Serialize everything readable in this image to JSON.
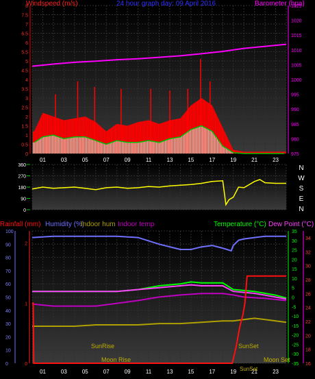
{
  "title": "24 hour graph day:  09 April 2016",
  "top_panel": {
    "left_label": "Windspeed (m/s)",
    "right_label": "Barometer (hpa)",
    "left_ticks": [
      "0",
      "0.5",
      "1",
      "1.5",
      "2",
      "2.5",
      "3",
      "3.5",
      "4",
      "4.5",
      "5",
      "5.5",
      "6",
      "6.5",
      "7",
      "7.5",
      "8"
    ],
    "right_ticks": [
      "975",
      "980",
      "985",
      "990",
      "995",
      "1000",
      "1005",
      "1010",
      "1015",
      "1020",
      "1025"
    ],
    "x_ticks": [
      "01",
      "03",
      "05",
      "07",
      "09",
      "11",
      "13",
      "15",
      "17",
      "19",
      "21",
      "23"
    ]
  },
  "direction_panel": {
    "left_ticks": [
      "0",
      "90",
      "180",
      "270",
      "360"
    ],
    "compass": [
      "N",
      "W",
      "S",
      "E",
      "N"
    ]
  },
  "bottom_panel": {
    "legend": [
      {
        "label": "Rainfall (mm)",
        "color": "#ff1010"
      },
      {
        "label": "Humidity (%)",
        "color": "#7070ff"
      },
      {
        "label": "Indoor hum",
        "color": "#b0a000"
      },
      {
        "label": "Indoor temp",
        "color": "#c000c0"
      },
      {
        "label": "Temperature (°C)",
        "color": "#00ff00"
      },
      {
        "label": "Dew Point (°C)",
        "color": "#ff40ff"
      }
    ],
    "left_ticks": [
      "0",
      "10",
      "20",
      "30",
      "40",
      "50",
      "60",
      "70",
      "80",
      "90",
      "100"
    ],
    "temp_ticks": [
      "-35",
      "-30",
      "-25",
      "-20",
      "-15",
      "-10",
      "-5",
      "0",
      "5",
      "10",
      "15",
      "20",
      "25",
      "30",
      "35"
    ],
    "indoor_ticks": [
      "16",
      "18",
      "20",
      "22",
      "24",
      "26",
      "28",
      "30",
      "32",
      "34"
    ],
    "rain_ticks": [
      "0",
      "1",
      "2"
    ],
    "x_ticks": [
      "01",
      "03",
      "05",
      "07",
      "09",
      "11",
      "13",
      "15",
      "17",
      "19",
      "21",
      "23"
    ],
    "events": {
      "sunrise": "SunRise",
      "moonrise": "Moon Rise",
      "sunset": "SunSet",
      "sunset_short": "SunSet",
      "moonset": "Moon Set"
    }
  },
  "chart_data": [
    {
      "type": "line",
      "title": "24 hour graph day:  09 April 2016",
      "x_unit": "hour",
      "series": [
        {
          "name": "Windspeed (m/s)",
          "color": "#ff0000",
          "axis": "left",
          "ylim": [
            0,
            8
          ],
          "x": [
            0.2,
            1,
            2,
            3,
            4,
            5,
            6,
            7,
            8,
            9,
            10,
            11,
            12,
            13,
            14,
            15,
            16,
            17,
            18,
            19,
            20,
            21,
            22,
            23,
            23.8
          ],
          "values": [
            1.2,
            2.2,
            2.0,
            1.8,
            1.9,
            2.0,
            1.7,
            1.2,
            1.6,
            1.5,
            1.7,
            1.8,
            1.6,
            1.8,
            1.9,
            2.6,
            3.0,
            2.6,
            1.4,
            0.2,
            0.1,
            0.1,
            0.1,
            0.1,
            0.1
          ]
        },
        {
          "name": "Gust (m/s)",
          "color": "#ff0000",
          "axis": "left",
          "ylim": [
            0,
            8
          ],
          "x": [
            2.2,
            4.3,
            5.9,
            8.4,
            11.2,
            13.0,
            14.7,
            15.9,
            16.8
          ],
          "values": [
            3.2,
            3.9,
            3.6,
            3.5,
            3.5,
            3.4,
            3.5,
            5.1,
            3.9
          ]
        },
        {
          "name": "Average wind (m/s)",
          "color": "#00c000",
          "axis": "left",
          "ylim": [
            0,
            8
          ],
          "x": [
            0.2,
            1,
            2,
            3,
            4,
            5,
            6,
            7,
            8,
            9,
            10,
            11,
            12,
            13,
            14,
            15,
            16,
            17,
            18,
            19,
            20,
            23.8
          ],
          "values": [
            0.6,
            0.9,
            1.0,
            0.8,
            0.9,
            0.9,
            0.7,
            0.5,
            0.7,
            0.6,
            0.6,
            0.7,
            0.6,
            0.8,
            0.9,
            1.3,
            1.5,
            1.2,
            0.4,
            0.05,
            0.0,
            0.0
          ]
        },
        {
          "name": "Barometer (hpa)",
          "color": "#ff00ff",
          "axis": "right",
          "ylim": [
            975,
            1025
          ],
          "x": [
            0,
            2,
            4,
            6,
            8,
            10,
            12,
            14,
            16,
            18,
            20,
            22,
            24
          ],
          "values": [
            1004.5,
            1005.2,
            1005.8,
            1006.2,
            1006.7,
            1007.0,
            1007.5,
            1008.0,
            1008.7,
            1009.5,
            1010.5,
            1011.2,
            1011.9
          ]
        }
      ]
    },
    {
      "type": "scatter",
      "x_unit": "hour",
      "series": [
        {
          "name": "Wind direction",
          "color": "#ffff00",
          "ylim": [
            0,
            360
          ],
          "x": [
            0,
            1,
            2,
            3,
            4,
            5,
            6,
            7,
            8,
            9,
            10,
            11,
            12,
            13,
            14,
            15,
            16,
            17,
            18,
            18.3,
            18.6,
            19,
            19.5,
            20,
            21,
            21.5,
            22,
            23,
            24
          ],
          "values": [
            165,
            180,
            170,
            175,
            180,
            170,
            160,
            175,
            180,
            170,
            175,
            185,
            180,
            190,
            195,
            200,
            210,
            225,
            230,
            40,
            80,
            100,
            180,
            175,
            225,
            240,
            215,
            210,
            210
          ]
        }
      ]
    },
    {
      "type": "line",
      "x_unit": "hour",
      "series": [
        {
          "name": "Humidity (%)",
          "color": "#7070ff",
          "axis": "left",
          "ylim": [
            0,
            100
          ],
          "x": [
            0,
            2,
            4,
            6,
            8,
            10,
            12,
            13,
            14,
            15,
            16,
            17,
            18,
            18.8,
            19,
            19.5,
            20,
            21,
            22,
            23,
            24
          ],
          "values": [
            95,
            96,
            96,
            96,
            96,
            95,
            90,
            88,
            86,
            86,
            88,
            89,
            87,
            85,
            89,
            93,
            94,
            95,
            96,
            96,
            96
          ]
        },
        {
          "name": "Indoor hum",
          "color": "#b0a000",
          "axis": "left",
          "ylim": [
            0,
            100
          ],
          "x": [
            0,
            2,
            4,
            6,
            8,
            10,
            12,
            14,
            16,
            18,
            19,
            20,
            21,
            22,
            23,
            24
          ],
          "values": [
            28,
            28,
            28,
            29,
            29,
            29,
            30,
            30,
            31,
            32,
            32,
            33,
            34,
            33,
            32,
            31
          ]
        },
        {
          "name": "Indoor temp",
          "color": "#c000c0",
          "axis": "indoor",
          "ylim": [
            16,
            34
          ],
          "x": [
            0,
            2,
            4,
            6,
            8,
            10,
            12,
            14,
            16,
            18,
            19,
            20,
            22,
            24
          ],
          "values": [
            24.5,
            24.2,
            24.2,
            24.2,
            24.6,
            25.0,
            25.5,
            25.8,
            26.0,
            26.0,
            25.8,
            25.5,
            25.3,
            25.0
          ]
        },
        {
          "name": "Temperature (°C)",
          "color": "#00ff00",
          "axis": "temp",
          "ylim": [
            -35,
            35
          ],
          "x": [
            0,
            2,
            4,
            6,
            8,
            10,
            12,
            14,
            15,
            16,
            17,
            18,
            19,
            20,
            21,
            22,
            23,
            24
          ],
          "values": [
            3,
            3,
            3,
            3,
            3,
            4,
            6,
            7,
            8,
            7.5,
            7.5,
            7.5,
            4,
            3.5,
            3,
            2,
            1,
            -0.5
          ]
        },
        {
          "name": "Dew Point (°C)",
          "color": "#ff40ff",
          "axis": "temp",
          "ylim": [
            -35,
            35
          ],
          "x": [
            0,
            2,
            4,
            6,
            8,
            10,
            12,
            14,
            15,
            16,
            17,
            18,
            19,
            20,
            21,
            22,
            23,
            24
          ],
          "values": [
            3,
            3,
            3,
            3,
            3,
            4,
            5,
            6,
            6.5,
            6,
            6,
            6,
            3,
            2.5,
            2,
            1,
            0,
            -1
          ]
        },
        {
          "name": "Rainfall (mm)",
          "color": "#ff1010",
          "axis": "rain",
          "ylim": [
            0,
            2.2
          ],
          "x": [
            0,
            0.1,
            0.15,
            18.9,
            19.1,
            19.3,
            19.6,
            19.9,
            20.1,
            20.3,
            24
          ],
          "values": [
            1,
            1,
            0,
            0,
            0.15,
            0.3,
            0.6,
            0.8,
            1.0,
            1.45,
            1.45
          ]
        }
      ]
    }
  ]
}
